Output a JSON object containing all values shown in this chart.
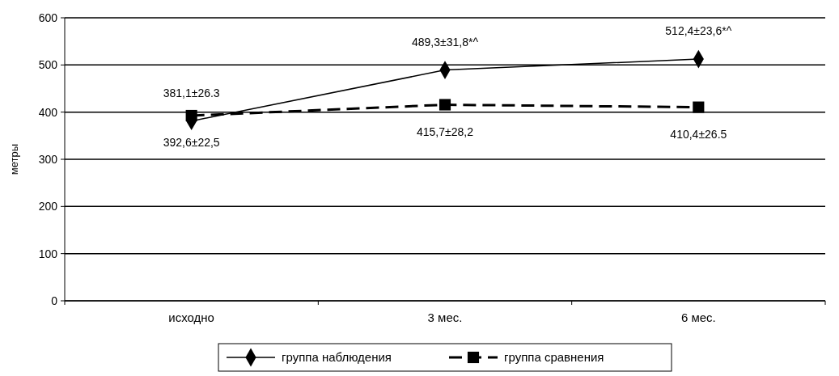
{
  "chart_data": {
    "type": "line",
    "ylabel": "метры",
    "categories": [
      "исходно",
      "3 мес.",
      "6 мес."
    ],
    "series": [
      {
        "name": "группа наблюдения",
        "color": "#000000",
        "values": [
          381.1,
          489.3,
          512.4
        ],
        "marker": "diamond",
        "line_style": "solid",
        "value_labels": [
          "381,1±26.3",
          "489,3±31,8*^",
          "512,4±23,6*^"
        ]
      },
      {
        "name": "группа сравнения",
        "color": "#000000",
        "values": [
          392.6,
          415.7,
          410.4
        ],
        "marker": "square",
        "line_style": "dashed",
        "value_labels": [
          "392,6±22,5",
          "415,7±28,2",
          "410,4±26.5"
        ]
      }
    ],
    "ylim": [
      0,
      600
    ],
    "yticks": [
      0,
      100,
      200,
      300,
      400,
      500,
      600
    ],
    "grid": "y",
    "legend": "bottom"
  }
}
